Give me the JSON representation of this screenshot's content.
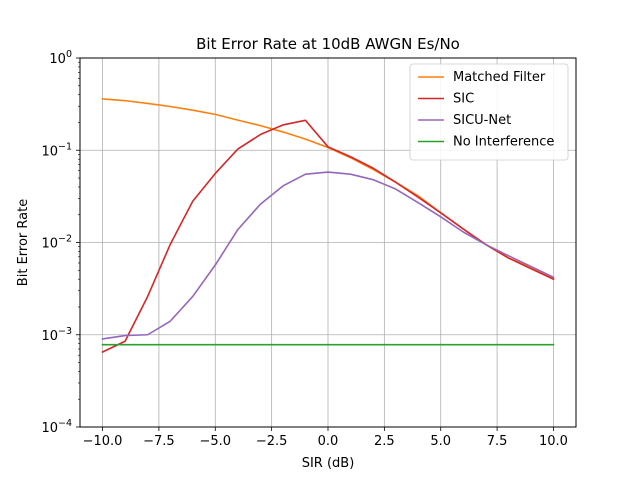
{
  "chart_data": {
    "type": "line",
    "title": "Bit Error Rate at 10dB AWGN Es/No",
    "xlabel": "SIR (dB)",
    "ylabel": "Bit Error Rate",
    "xlim": [
      -11,
      11
    ],
    "ylim": [
      0.0001,
      1
    ],
    "yscale": "log",
    "grid": true,
    "legend_position": "top-right",
    "xticks": [
      -10.0,
      -7.5,
      -5.0,
      -2.5,
      0.0,
      2.5,
      5.0,
      7.5,
      10.0
    ],
    "xtick_labels": [
      "−10.0",
      "−7.5",
      "−5.0",
      "−2.5",
      "0.0",
      "2.5",
      "5.0",
      "7.5",
      "10.0"
    ],
    "yticks": [
      0.0001,
      0.001,
      0.01,
      0.1,
      1
    ],
    "ytick_labels": [
      {
        "base": "10",
        "exp": "−4"
      },
      {
        "base": "10",
        "exp": "−3"
      },
      {
        "base": "10",
        "exp": "−2"
      },
      {
        "base": "10",
        "exp": "−1"
      },
      {
        "base": "10",
        "exp": "0"
      }
    ],
    "x": [
      -10,
      -9,
      -8,
      -7,
      -6,
      -5,
      -4,
      -3,
      -2,
      -1,
      0,
      1,
      2,
      3,
      4,
      5,
      6,
      7,
      8,
      9,
      10
    ],
    "series": [
      {
        "name": "Matched Filter",
        "color": "#ff7f0e",
        "values": [
          0.36,
          0.345,
          0.322,
          0.298,
          0.272,
          0.245,
          0.212,
          0.185,
          0.158,
          0.132,
          0.107,
          0.083,
          0.062,
          0.045,
          0.032,
          0.021,
          0.014,
          0.0095,
          0.0068,
          0.0054,
          0.0041
        ]
      },
      {
        "name": "SIC",
        "color": "#d62728",
        "values": [
          0.00065,
          0.00085,
          0.0026,
          0.0095,
          0.028,
          0.056,
          0.103,
          0.148,
          0.188,
          0.211,
          0.109,
          0.085,
          0.064,
          0.045,
          0.031,
          0.021,
          0.014,
          0.0095,
          0.0068,
          0.0052,
          0.004
        ]
      },
      {
        "name": "SICU-Net",
        "color": "#9467bd",
        "values": [
          0.0009,
          0.00098,
          0.001,
          0.0014,
          0.0026,
          0.0057,
          0.0138,
          0.026,
          0.041,
          0.055,
          0.058,
          0.055,
          0.048,
          0.038,
          0.027,
          0.019,
          0.013,
          0.0095,
          0.0072,
          0.0055,
          0.0042
        ]
      },
      {
        "name": "No Interference",
        "color": "#2ca02c",
        "values": [
          0.00078,
          0.00078,
          0.00078,
          0.00078,
          0.00078,
          0.00078,
          0.00078,
          0.00078,
          0.00078,
          0.00078,
          0.00078,
          0.00078,
          0.00078,
          0.00078,
          0.00078,
          0.00078,
          0.00078,
          0.00078,
          0.00078,
          0.00078,
          0.00078
        ]
      }
    ]
  }
}
